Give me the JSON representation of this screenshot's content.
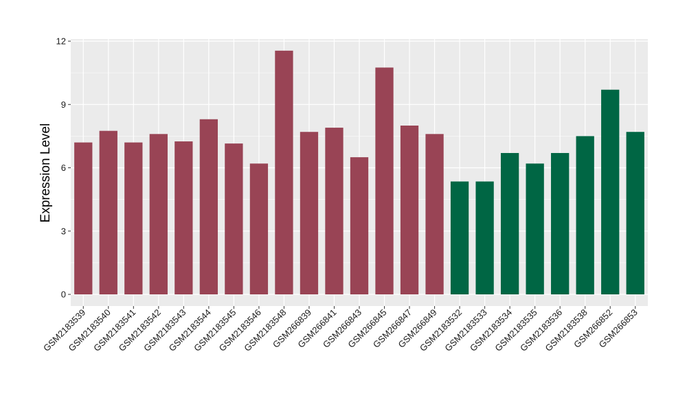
{
  "chart_data": {
    "type": "bar",
    "title": "",
    "xlabel": "",
    "ylabel": "Expression Level",
    "ylim": [
      0,
      12
    ],
    "yticks": [
      0,
      3,
      6,
      9,
      12
    ],
    "grid": true,
    "legend": "none",
    "colors": {
      "group_a": "#994455",
      "group_b": "#006644",
      "panel_bg": "#ebebeb",
      "grid": "#ffffff"
    },
    "categories": [
      "GSM2183539",
      "GSM2183540",
      "GSM2183541",
      "GSM2183542",
      "GSM2183543",
      "GSM2183544",
      "GSM2183545",
      "GSM2183546",
      "GSM2183548",
      "GSM266839",
      "GSM266841",
      "GSM266843",
      "GSM266845",
      "GSM266847",
      "GSM266849",
      "GSM2183532",
      "GSM2183533",
      "GSM2183534",
      "GSM2183535",
      "GSM2183536",
      "GSM2183538",
      "GSM266852",
      "GSM266853"
    ],
    "values": [
      7.2,
      7.75,
      7.2,
      7.6,
      7.25,
      8.3,
      7.15,
      6.2,
      11.55,
      7.7,
      7.9,
      6.5,
      10.75,
      8.0,
      7.6,
      5.35,
      5.35,
      6.7,
      6.2,
      6.7,
      7.5,
      9.7,
      7.7
    ],
    "groups": [
      "group_a",
      "group_a",
      "group_a",
      "group_a",
      "group_a",
      "group_a",
      "group_a",
      "group_a",
      "group_a",
      "group_a",
      "group_a",
      "group_a",
      "group_a",
      "group_a",
      "group_a",
      "group_b",
      "group_b",
      "group_b",
      "group_b",
      "group_b",
      "group_b",
      "group_b",
      "group_b"
    ]
  }
}
